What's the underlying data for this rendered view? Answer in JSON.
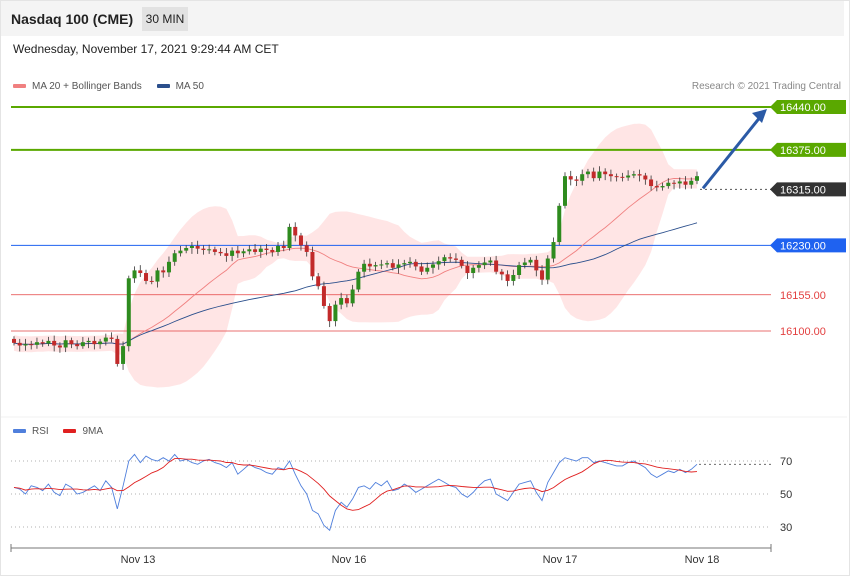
{
  "header": {
    "title": "Nasdaq 100 (CME)",
    "timeframe": "30 MIN"
  },
  "datetime": "Wednesday, November 17, 2021 9:29:44 AM CET",
  "legend_main": [
    {
      "label": "MA 20 + Bollinger Bands",
      "color": "#f08080"
    },
    {
      "label": "MA 50",
      "color": "#2b4f8c"
    }
  ],
  "credit": "Research © 2021 Trading Central",
  "legend_rsi": [
    {
      "label": "RSI",
      "color": "#4f7fdc"
    },
    {
      "label": "9MA",
      "color": "#e02020"
    }
  ],
  "colors": {
    "up": "#2e8b1e",
    "down": "#c22a2a",
    "green_level": "#5aa800",
    "blue_level": "#1f62f0",
    "red_level": "#e34040",
    "current": "#333333",
    "arrow": "#2b5aa6",
    "band": "#ffe0e0"
  },
  "chart_data": {
    "type": "candlestick",
    "y_unit": "index points",
    "levels": [
      {
        "value": 16440.0,
        "label": "16440.00",
        "style": "green"
      },
      {
        "value": 16375.0,
        "label": "16375.00",
        "style": "green"
      },
      {
        "value": 16315.0,
        "label": "16315.00",
        "style": "current"
      },
      {
        "value": 16230.0,
        "label": "16230.00",
        "style": "blue"
      },
      {
        "value": 16155.0,
        "label": "16155.00",
        "style": "red"
      },
      {
        "value": 16100.0,
        "label": "16100.00",
        "style": "red"
      }
    ],
    "x_ticks": [
      "Nov 13",
      "Nov 16",
      "Nov 17",
      "Nov 18"
    ],
    "closes": [
      16082,
      16078,
      16080,
      16079,
      16083,
      16081,
      16085,
      16078,
      16075,
      16086,
      16080,
      16077,
      16083,
      16085,
      16080,
      16084,
      16090,
      16088,
      16050,
      16077,
      16180,
      16192,
      16188,
      16176,
      16175,
      16192,
      16189,
      16205,
      16218,
      16222,
      16226,
      16229,
      16225,
      16223,
      16224,
      16220,
      16218,
      16214,
      16222,
      16218,
      16221,
      16224,
      16220,
      16225,
      16223,
      16220,
      16229,
      16226,
      16258,
      16245,
      16230,
      16220,
      16183,
      16168,
      16138,
      16115,
      16140,
      16150,
      16142,
      16163,
      16190,
      16202,
      16198,
      16200,
      16201,
      16203,
      16196,
      16201,
      16203,
      16205,
      16198,
      16190,
      16196,
      16201,
      16206,
      16212,
      16210,
      16208,
      16199,
      16188,
      16196,
      16200,
      16204,
      16207,
      16190,
      16186,
      16176,
      16185,
      16200,
      16204,
      16208,
      16192,
      16178,
      16210,
      16235,
      16290,
      16335,
      16330,
      16328,
      16338,
      16342,
      16332,
      16342,
      16338,
      16335,
      16334,
      16333,
      16336,
      16338,
      16336,
      16330,
      16320,
      16318,
      16320,
      16325,
      16324,
      16327,
      16322,
      16328,
      16335
    ],
    "rsi": [
      54,
      53,
      50,
      55,
      54,
      52,
      56,
      51,
      49,
      56,
      54,
      50,
      51,
      53,
      55,
      52,
      58,
      54,
      41,
      55,
      70,
      74,
      69,
      73,
      71,
      70,
      72,
      70,
      74,
      70,
      71,
      69,
      68,
      70,
      71,
      69,
      68,
      66,
      69,
      62,
      65,
      68,
      66,
      65,
      63,
      62,
      66,
      65,
      70,
      62,
      55,
      50,
      40,
      38,
      31,
      28,
      40,
      45,
      42,
      47,
      54,
      55,
      53,
      57,
      55,
      58,
      52,
      53,
      56,
      54,
      51,
      53,
      55,
      57,
      59,
      57,
      55,
      54,
      50,
      48,
      51,
      55,
      58,
      59,
      50,
      48,
      46,
      51,
      56,
      57,
      58,
      51,
      46,
      57,
      63,
      69,
      72,
      71,
      70,
      72,
      72,
      69,
      70,
      69,
      68,
      67,
      67,
      69,
      70,
      68,
      66,
      62,
      60,
      62,
      64,
      63,
      65,
      63,
      65,
      68
    ],
    "rsi_ticks": [
      "70",
      "50",
      "30"
    ],
    "rsi_levels": [
      70,
      50,
      30
    ],
    "rsi_range": [
      20,
      80
    ]
  }
}
